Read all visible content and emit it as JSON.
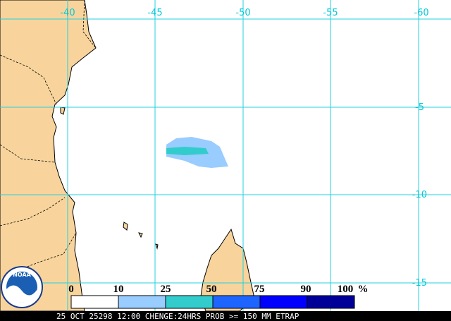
{
  "map": {
    "longitude_labels": [
      "-40",
      "-45",
      "-50",
      "-55",
      "-60"
    ],
    "latitude_labels": [
      "-5",
      "-10",
      "-15"
    ],
    "legend": {
      "labels": [
        "0",
        "10",
        "25",
        "50",
        "75",
        "90",
        "100"
      ],
      "unit": "%"
    },
    "footer": "25 OCT 25298 12:00 CHENGE:24HRS PROB >= 150 MM ETRAP",
    "logo": "NOAA"
  }
}
